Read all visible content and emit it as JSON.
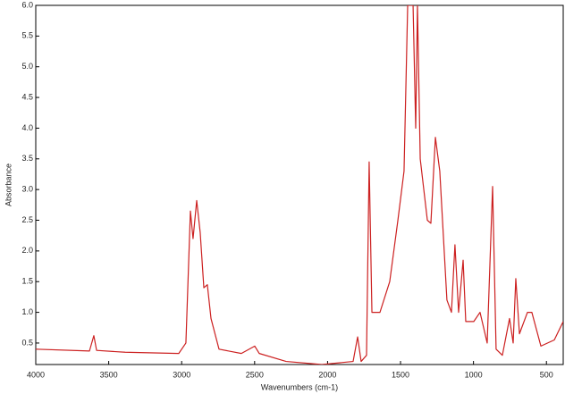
{
  "chart_data": {
    "type": "line",
    "xlabel": "Wavenumbers (cm-1)",
    "ylabel": "Absorbance",
    "xlim": [
      4000,
      385
    ],
    "ylim": [
      0.15,
      6.0
    ],
    "xticks": [
      4000,
      3500,
      3000,
      2500,
      2000,
      1500,
      1000,
      500
    ],
    "yticks": [
      0.5,
      {
        "value": 1,
        "label": "1.0"
      },
      1.5,
      {
        "value": 2,
        "label": "2.0"
      },
      2.5,
      {
        "value": 3,
        "label": "3.0"
      },
      3.5,
      {
        "value": 4,
        "label": "4.0"
      },
      4.5,
      {
        "value": 5,
        "label": "5.0"
      },
      5.5,
      {
        "value": 6,
        "label": "6.0"
      }
    ],
    "grid": false,
    "color": "#cc2020",
    "x": [
      4000,
      3632,
      3602,
      3583,
      3387,
      3020,
      2971,
      2940,
      2922,
      2897,
      2873,
      2848,
      2824,
      2799,
      2744,
      2591,
      2499,
      2468,
      2284,
      2039,
      1825,
      1794,
      1770,
      1733,
      1715,
      1696,
      1641,
      1574,
      1518,
      1476,
      1451,
      1414,
      1396,
      1384,
      1365,
      1316,
      1292,
      1261,
      1231,
      1182,
      1151,
      1127,
      1102,
      1071,
      1053,
      998,
      955,
      906,
      869,
      845,
      802,
      753,
      728,
      710,
      685,
      630,
      600,
      538,
      446,
      385
    ],
    "values": [
      0.4,
      0.37,
      0.62,
      0.38,
      0.35,
      0.33,
      0.5,
      2.65,
      2.2,
      2.82,
      2.3,
      1.4,
      1.45,
      0.9,
      0.4,
      0.33,
      0.45,
      0.33,
      0.2,
      0.15,
      0.2,
      0.6,
      0.2,
      0.3,
      3.45,
      1.0,
      1.0,
      1.5,
      2.5,
      3.3,
      6.0,
      6.0,
      4.0,
      6.0,
      3.5,
      2.5,
      2.45,
      3.85,
      3.3,
      1.2,
      1.0,
      2.1,
      1.0,
      1.85,
      0.85,
      0.85,
      1.0,
      0.5,
      3.05,
      0.4,
      0.3,
      0.9,
      0.5,
      1.55,
      0.65,
      1.0,
      1.0,
      0.45,
      0.55,
      0.85
    ]
  }
}
